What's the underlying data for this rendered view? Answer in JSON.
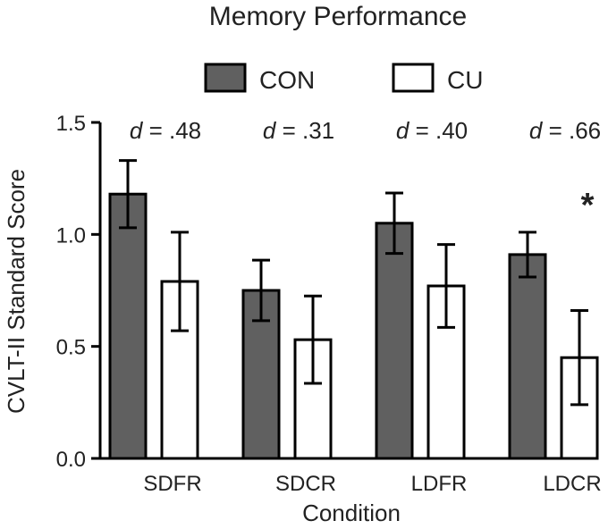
{
  "chart_data": {
    "type": "bar",
    "title": "Memory Performance",
    "xlabel": "Condition",
    "ylabel": "CVLT-II Standard Score",
    "ylim": [
      0,
      1.5
    ],
    "yticks": [
      "0.0",
      "0.5",
      "1.0",
      "1.5"
    ],
    "categories": [
      "SDFR",
      "SDCR",
      "LDFR",
      "LDCR"
    ],
    "legend_placement": "top-center",
    "series": [
      {
        "name": "CON",
        "color": "#606060",
        "values": [
          1.18,
          0.75,
          1.05,
          0.91
        ],
        "errors": [
          0.15,
          0.135,
          0.135,
          0.1
        ]
      },
      {
        "name": "CU",
        "color": "#ffffff",
        "values": [
          0.79,
          0.53,
          0.77,
          0.45
        ],
        "errors": [
          0.22,
          0.195,
          0.185,
          0.21
        ]
      }
    ],
    "annotations": {
      "effect_prefix": "d",
      "effect_values": [
        " = .48",
        " = .31",
        " = .40",
        " = .66"
      ],
      "significance": [
        "",
        "",
        "",
        "*"
      ]
    }
  }
}
